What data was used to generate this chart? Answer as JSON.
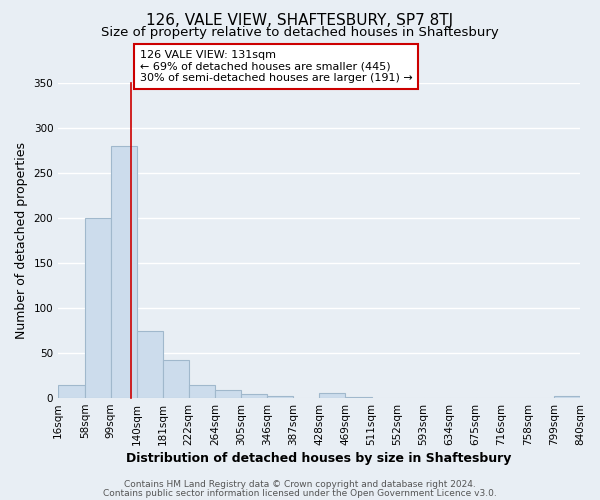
{
  "title": "126, VALE VIEW, SHAFTESBURY, SP7 8TJ",
  "subtitle": "Size of property relative to detached houses in Shaftesbury",
  "xlabel": "Distribution of detached houses by size in Shaftesbury",
  "ylabel": "Number of detached properties",
  "bar_color": "#ccdcec",
  "bar_edge_color": "#a0b8cc",
  "bin_edges": [
    16,
    58,
    99,
    140,
    181,
    222,
    264,
    305,
    346,
    387,
    428,
    469,
    511,
    552,
    593,
    634,
    675,
    716,
    758,
    799,
    840
  ],
  "bar_heights": [
    14,
    200,
    280,
    75,
    42,
    15,
    9,
    5,
    2,
    0,
    6,
    1,
    0,
    0,
    0,
    0,
    0,
    0,
    0,
    2
  ],
  "tick_labels": [
    "16sqm",
    "58sqm",
    "99sqm",
    "140sqm",
    "181sqm",
    "222sqm",
    "264sqm",
    "305sqm",
    "346sqm",
    "387sqm",
    "428sqm",
    "469sqm",
    "511sqm",
    "552sqm",
    "593sqm",
    "634sqm",
    "675sqm",
    "716sqm",
    "758sqm",
    "799sqm",
    "840sqm"
  ],
  "ylim": [
    0,
    350
  ],
  "yticks": [
    0,
    50,
    100,
    150,
    200,
    250,
    300,
    350
  ],
  "vline_x": 131,
  "vline_color": "#cc0000",
  "annotation_text": "126 VALE VIEW: 131sqm\n← 69% of detached houses are smaller (445)\n30% of semi-detached houses are larger (191) →",
  "annotation_box_color": "#ffffff",
  "annotation_box_edge": "#cc0000",
  "footer_line1": "Contains HM Land Registry data © Crown copyright and database right 2024.",
  "footer_line2": "Contains public sector information licensed under the Open Government Licence v3.0.",
  "bg_color": "#e8eef4",
  "plot_bg_color": "#e8eef4",
  "grid_color": "#ffffff",
  "title_fontsize": 11,
  "subtitle_fontsize": 9.5,
  "axis_label_fontsize": 9,
  "tick_fontsize": 7.5,
  "annotation_fontsize": 8,
  "footer_fontsize": 6.5
}
